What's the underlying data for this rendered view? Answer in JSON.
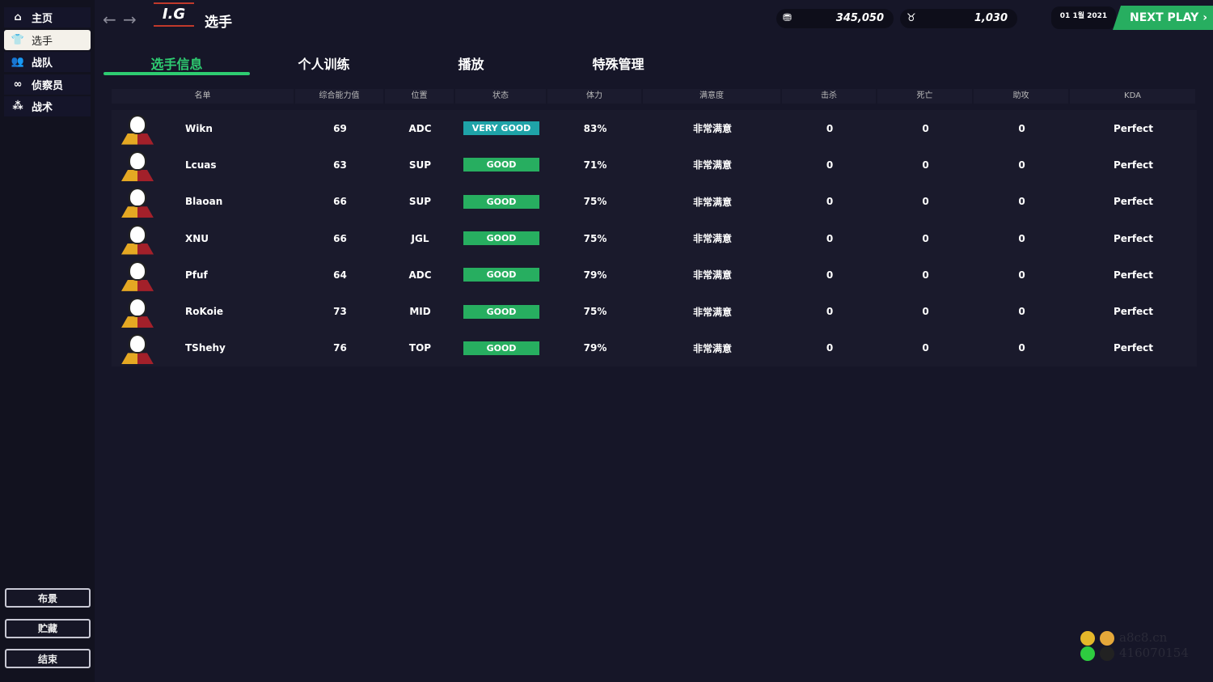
{
  "sidebar": {
    "items": [
      {
        "label": "主页",
        "icon": "home-icon"
      },
      {
        "label": "选手",
        "icon": "jersey-icon",
        "active": true
      },
      {
        "label": "战队",
        "icon": "team-icon"
      },
      {
        "label": "侦察员",
        "icon": "binoculars-icon"
      },
      {
        "label": "战术",
        "icon": "tactics-icon"
      }
    ],
    "buttons": [
      "布景",
      "贮藏",
      "结束"
    ]
  },
  "header": {
    "logo": "I.G",
    "title": "选手",
    "money": "345,050",
    "fans": "1,030",
    "date": "01 1월 2021",
    "next_play": "NEXT PLAY"
  },
  "tabs": [
    {
      "label": "选手信息",
      "active": true
    },
    {
      "label": "个人训练"
    },
    {
      "label": "播放"
    },
    {
      "label": "特殊管理"
    }
  ],
  "table": {
    "columns": [
      "名单",
      "综合能力值",
      "位置",
      "状态",
      "体力",
      "满意度",
      "击杀",
      "死亡",
      "助攻",
      "KDA"
    ],
    "rows": [
      [
        "Wikn",
        "69",
        "ADC",
        "VERY GOOD",
        "83%",
        "非常满意",
        "0",
        "0",
        "0",
        "Perfect"
      ],
      [
        "Lcuas",
        "63",
        "SUP",
        "GOOD",
        "71%",
        "非常满意",
        "0",
        "0",
        "0",
        "Perfect"
      ],
      [
        "Blaoan",
        "66",
        "SUP",
        "GOOD",
        "75%",
        "非常满意",
        "0",
        "0",
        "0",
        "Perfect"
      ],
      [
        "XNU",
        "66",
        "JGL",
        "GOOD",
        "75%",
        "非常满意",
        "0",
        "0",
        "0",
        "Perfect"
      ],
      [
        "Pfuf",
        "64",
        "ADC",
        "GOOD",
        "79%",
        "非常满意",
        "0",
        "0",
        "0",
        "Perfect"
      ],
      [
        "RoKoie",
        "73",
        "MID",
        "GOOD",
        "75%",
        "非常满意",
        "0",
        "0",
        "0",
        "Perfect"
      ],
      [
        "TShehy",
        "76",
        "TOP",
        "GOOD",
        "79%",
        "非常满意",
        "0",
        "0",
        "0",
        "Perfect"
      ]
    ]
  },
  "status_colors": {
    "VERY GOOD": "#1fa3a8",
    "GOOD": "#27ae60"
  },
  "watermark": {
    "site": "a8c8.cn",
    "qq": "416070154"
  }
}
